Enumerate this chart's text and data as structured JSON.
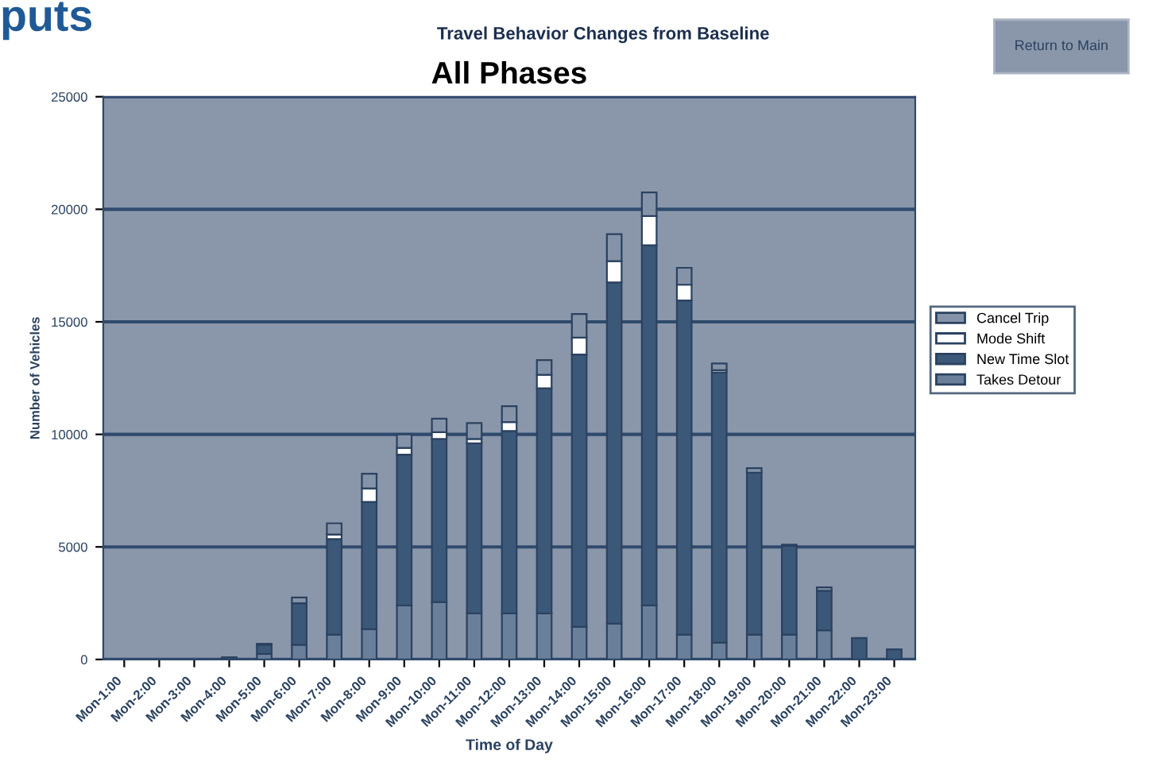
{
  "chart_data": {
    "type": "bar",
    "stacked": true,
    "title": "All Phases",
    "subtitle": "Travel Behavior Changes from Baseline",
    "xlabel": "Time of Day",
    "ylabel": "Number of Vehicles",
    "categories": [
      "Mon-1:00",
      "Mon-2:00",
      "Mon-3:00",
      "Mon-4:00",
      "Mon-5:00",
      "Mon-6:00",
      "Mon-7:00",
      "Mon-8:00",
      "Mon-9:00",
      "Mon-10:00",
      "Mon-11:00",
      "Mon-12:00",
      "Mon-13:00",
      "Mon-14:00",
      "Mon-15:00",
      "Mon-16:00",
      "Mon-17:00",
      "Mon-18:00",
      "Mon-19:00",
      "Mon-20:00",
      "Mon-21:00",
      "Mon-22:00",
      "Mon-23:00"
    ],
    "series": [
      {
        "name": "Takes Detour",
        "color": "#6a7f9a",
        "values": [
          0,
          0,
          0,
          0,
          250,
          650,
          1100,
          1350,
          2400,
          2550,
          2050,
          2050,
          2050,
          1450,
          1600,
          2400,
          1100,
          750,
          1100,
          1100,
          1300,
          0,
          0
        ]
      },
      {
        "name": "New Time Slot",
        "color": "#3c5878",
        "values": [
          0,
          0,
          0,
          100,
          400,
          1850,
          4250,
          5650,
          6700,
          7250,
          7550,
          8100,
          10000,
          12100,
          15150,
          16000,
          14850,
          12000,
          7200,
          3950,
          1750,
          950,
          450
        ]
      },
      {
        "name": "Mode Shift",
        "color": "#ffffff",
        "values": [
          0,
          0,
          0,
          0,
          0,
          0,
          200,
          600,
          300,
          300,
          200,
          400,
          600,
          750,
          950,
          1300,
          700,
          100,
          0,
          0,
          0,
          0,
          0
        ]
      },
      {
        "name": "Cancel Trip",
        "color": "#8593a8",
        "values": [
          0,
          0,
          0,
          0,
          50,
          250,
          500,
          650,
          600,
          600,
          700,
          700,
          650,
          1050,
          1200,
          1050,
          750,
          300,
          200,
          50,
          150,
          0,
          0
        ]
      }
    ],
    "ylim": [
      0,
      25000
    ],
    "yticks": [
      0,
      5000,
      10000,
      15000,
      20000,
      25000
    ],
    "grid": "y",
    "legend": "right",
    "annotations": [
      "puts",
      "Return to Main"
    ]
  }
}
